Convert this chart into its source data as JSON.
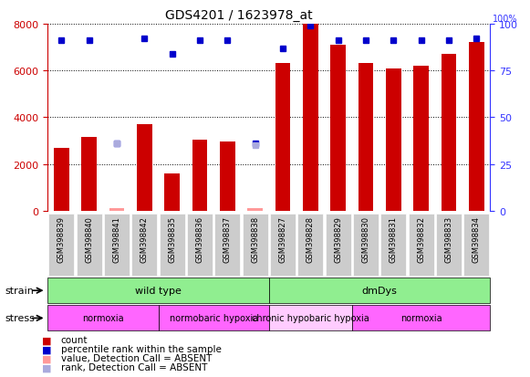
{
  "title": "GDS4201 / 1623978_at",
  "samples": [
    "GSM398839",
    "GSM398840",
    "GSM398841",
    "GSM398842",
    "GSM398835",
    "GSM398836",
    "GSM398837",
    "GSM398838",
    "GSM398827",
    "GSM398828",
    "GSM398829",
    "GSM398830",
    "GSM398831",
    "GSM398832",
    "GSM398833",
    "GSM398834"
  ],
  "count_values": [
    2700,
    3150,
    100,
    3700,
    1600,
    3050,
    2950,
    100,
    6300,
    8000,
    7100,
    6300,
    6100,
    6200,
    6700,
    7200
  ],
  "count_absent": [
    false,
    false,
    true,
    false,
    false,
    false,
    false,
    true,
    false,
    false,
    false,
    false,
    false,
    false,
    false,
    false
  ],
  "percentile_values": [
    91,
    91,
    36,
    92,
    84,
    91,
    91,
    36,
    87,
    99,
    91,
    91,
    91,
    91,
    91,
    92
  ],
  "rank_absent_values": [
    null,
    null,
    36,
    null,
    null,
    null,
    null,
    35,
    null,
    null,
    null,
    null,
    null,
    null,
    null,
    null
  ],
  "ylim_left": [
    0,
    8000
  ],
  "ylim_right": [
    0,
    100
  ],
  "yticks_left": [
    0,
    2000,
    4000,
    6000,
    8000
  ],
  "yticks_right": [
    0,
    25,
    50,
    75,
    100
  ],
  "strain_groups": [
    {
      "label": "wild type",
      "start": 0,
      "end": 8,
      "color": "#90EE90"
    },
    {
      "label": "dmDys",
      "start": 8,
      "end": 16,
      "color": "#90EE90"
    }
  ],
  "stress_groups": [
    {
      "label": "normoxia",
      "start": 0,
      "end": 4,
      "color": "#FF66FF"
    },
    {
      "label": "normobaric hypoxia",
      "start": 4,
      "end": 8,
      "color": "#FF66FF"
    },
    {
      "label": "chronic hypobaric hypoxia",
      "start": 8,
      "end": 11,
      "color": "#FFCCFF"
    },
    {
      "label": "normoxia",
      "start": 11,
      "end": 16,
      "color": "#FF66FF"
    }
  ],
  "bar_color": "#CC0000",
  "bar_absent_color": "#FF9999",
  "dot_color": "#0000CC",
  "dot_absent_color": "#9999CC",
  "rank_absent_color": "#AAAADD",
  "left_axis_color": "#CC0000",
  "right_axis_color": "#3333FF",
  "plot_bg_color": "#FFFFFF",
  "sample_box_color": "#CCCCCC",
  "legend_items": [
    {
      "color": "#CC0000",
      "label": "count"
    },
    {
      "color": "#0000CC",
      "label": "percentile rank within the sample"
    },
    {
      "color": "#FF9999",
      "label": "value, Detection Call = ABSENT"
    },
    {
      "color": "#AAAADD",
      "label": "rank, Detection Call = ABSENT"
    }
  ]
}
